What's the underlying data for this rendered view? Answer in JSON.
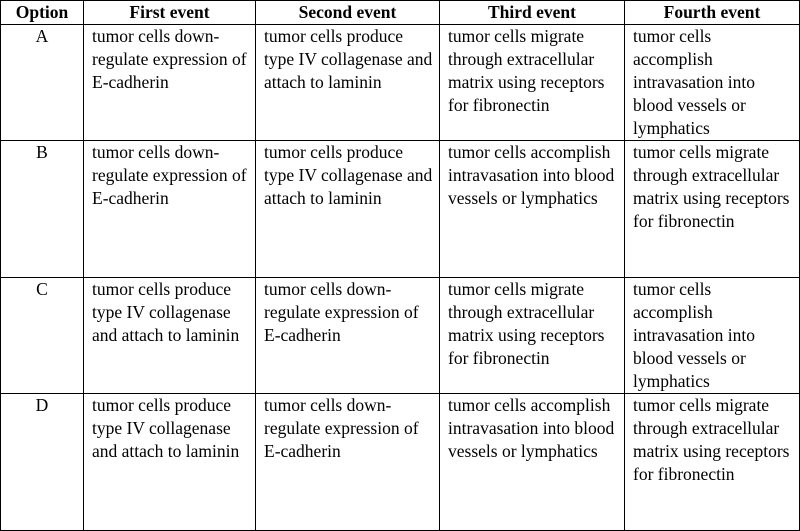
{
  "headers": [
    "Option",
    "First event",
    "Second event",
    "Third event",
    "Fourth event"
  ],
  "rows": [
    {
      "option": "A",
      "first": "tumor cells down-regulate expression of E-cadherin",
      "second": "tumor cells produce type IV collagenase and attach to laminin",
      "third": "tumor cells migrate through extracellular matrix using receptors for fibronectin",
      "fourth": "tumor cells accomplish intravasation into blood vessels or lymphatics"
    },
    {
      "option": "B",
      "first": "tumor cells down-regulate expression of E-cadherin",
      "second": "tumor cells produce type IV collagenase and attach to laminin",
      "third": "tumor cells accomplish intravasation into blood vessels or lymphatics",
      "fourth": "tumor cells migrate through extracellular matrix using receptors for fibronectin"
    },
    {
      "option": "C",
      "first": "tumor cells produce type IV collagenase and attach to laminin",
      "second": "tumor cells down-regulate expression of E-cadherin",
      "third": "tumor cells migrate through extracellular matrix using receptors for fibronectin",
      "fourth": "tumor cells accomplish intravasation into blood vessels or lymphatics"
    },
    {
      "option": "D",
      "first": "tumor cells produce type IV collagenase and attach to laminin",
      "second": "tumor cells down-regulate expression of E-cadherin",
      "third": "tumor cells accomplish intravasation into blood vessels or lymphatics",
      "fourth": "tumor cells migrate through extracellular matrix using receptors for fibronectin"
    }
  ]
}
